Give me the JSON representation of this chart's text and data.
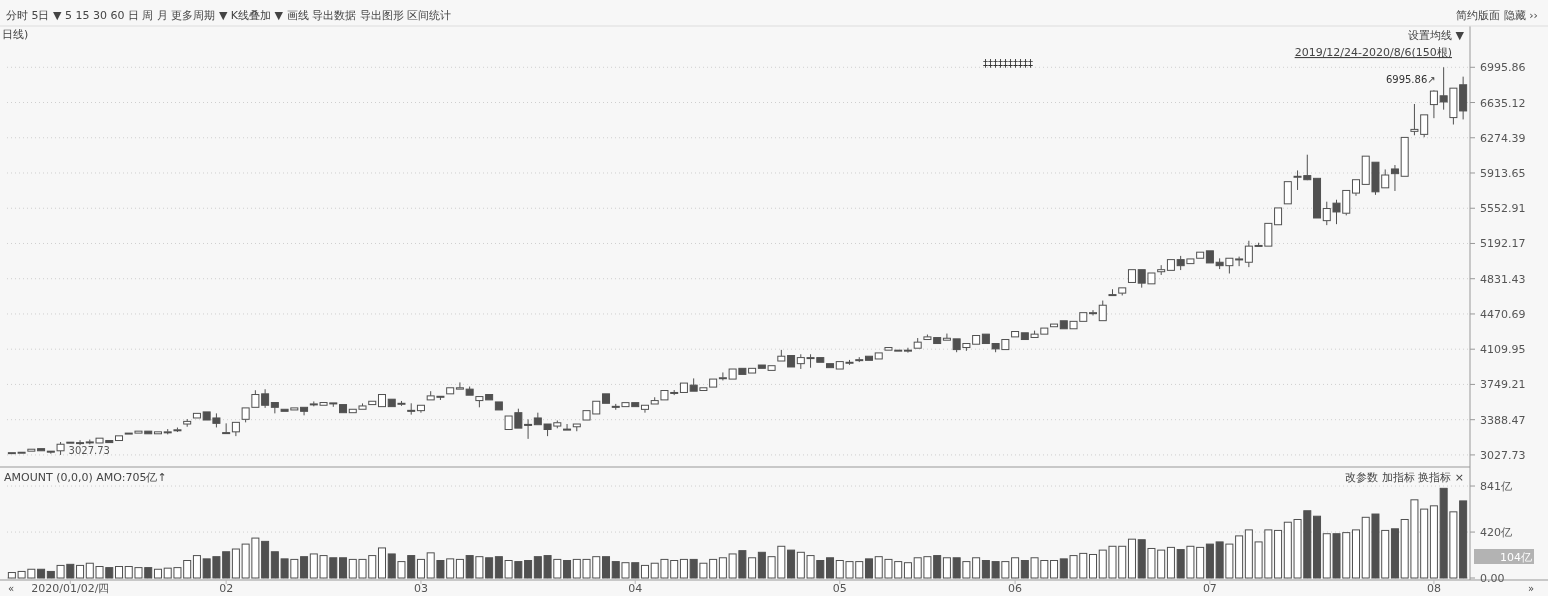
{
  "chart_data": [
    {
      "type": "candlestick",
      "title": "日线)",
      "grid": "y",
      "tick_labels": "y",
      "annotations": [
        "分时  5日 ▼  5  15  30  60  日  周  月  更多周期 ▼  K线叠加 ▼  画线  导出数据  导出图形  区间统计",
        "简约版面    隐藏 ››",
        "设置均线 ▼",
        "2019/12/24-2020/8/6(150根)",
        "6995.86↗",
        "3027.73",
        "‡‡‡‡‡‡‡‡‡‡"
      ],
      "ylim": [
        2904,
        7398
      ],
      "yticks": [
        3027.73,
        3388.47,
        3749.21,
        4109.95,
        4470.69,
        4831.43,
        5192.17,
        5552.91,
        5913.65,
        6274.39,
        6635.12,
        6995.86
      ],
      "categories": [
        null,
        null,
        null,
        null,
        null,
        null,
        null,
        null,
        null,
        null,
        null,
        null,
        null,
        null,
        null,
        null,
        null,
        null,
        null,
        null,
        null,
        null,
        null,
        null,
        null,
        null,
        null,
        null,
        null,
        null,
        null,
        null,
        null,
        null,
        null,
        null,
        null,
        null,
        null,
        null,
        null,
        null,
        null,
        null,
        null,
        null,
        null,
        null,
        null,
        null,
        null,
        null,
        null,
        null,
        null,
        null,
        null,
        null,
        null,
        null,
        null,
        null,
        null,
        null,
        null,
        null,
        null,
        null,
        null,
        null,
        null,
        null,
        null,
        null,
        null,
        null,
        null,
        null,
        null,
        null,
        null,
        null,
        null,
        null,
        null,
        null,
        null,
        null,
        null,
        null,
        null,
        null,
        null,
        null,
        null,
        null,
        null,
        null,
        null,
        null,
        null,
        null,
        null,
        null,
        null,
        null,
        null,
        null,
        null,
        null,
        null,
        null,
        null,
        null,
        null,
        null,
        null,
        null,
        null,
        null,
        null,
        null,
        null,
        null,
        null,
        null,
        null,
        null,
        null,
        null,
        null,
        null,
        null,
        null,
        null,
        null,
        null,
        null,
        null,
        null,
        null,
        null,
        null,
        null,
        null,
        null,
        null,
        null,
        null,
        null
      ],
      "ohlc": [
        [
          3048,
          3051,
          3048,
          3051
        ],
        [
          3052,
          3055,
          3052,
          3055
        ],
        [
          3066,
          3086,
          3066,
          3086
        ],
        [
          3092,
          3092,
          3070,
          3070
        ],
        [
          3066,
          3066,
          3040,
          3065
        ],
        [
          3070,
          3160,
          3027.73,
          3137
        ],
        [
          3158,
          3158,
          3154,
          3154
        ],
        [
          3152,
          3178,
          3128,
          3154
        ],
        [
          3160,
          3185,
          3136,
          3161
        ],
        [
          3150,
          3199,
          3150,
          3199
        ],
        [
          3175,
          3175,
          3154,
          3154
        ],
        [
          3175,
          3223,
          3175,
          3223
        ],
        [
          3250,
          3251,
          3250,
          3251
        ],
        [
          3251,
          3271,
          3251,
          3271
        ],
        [
          3271,
          3271,
          3244,
          3244
        ],
        [
          3244,
          3264,
          3244,
          3264
        ],
        [
          3262,
          3292,
          3238,
          3264
        ],
        [
          3283,
          3308,
          3262,
          3285
        ],
        [
          3344,
          3395,
          3316,
          3371
        ],
        [
          3406,
          3453,
          3406,
          3453
        ],
        [
          3468,
          3468,
          3385,
          3385
        ],
        [
          3406,
          3453,
          3309,
          3351
        ],
        [
          3256,
          3351,
          3251,
          3251
        ],
        [
          3264,
          3361,
          3220,
          3361
        ],
        [
          3392,
          3509,
          3361,
          3509
        ],
        [
          3515,
          3690,
          3515,
          3646
        ],
        [
          3653,
          3700,
          3509,
          3536
        ],
        [
          3564,
          3564,
          3453,
          3515
        ],
        [
          3495,
          3495,
          3474,
          3474
        ],
        [
          3488,
          3509,
          3488,
          3509
        ],
        [
          3515,
          3515,
          3433,
          3474
        ],
        [
          3548,
          3575,
          3525,
          3550
        ],
        [
          3536,
          3564,
          3536,
          3564
        ],
        [
          3560,
          3560,
          3520,
          3557
        ],
        [
          3543,
          3543,
          3460,
          3460
        ],
        [
          3460,
          3495,
          3460,
          3495
        ],
        [
          3495,
          3555,
          3495,
          3529
        ],
        [
          3543,
          3577,
          3543,
          3577
        ],
        [
          3522,
          3646,
          3522,
          3646
        ],
        [
          3598,
          3598,
          3522,
          3522
        ],
        [
          3553,
          3580,
          3530,
          3556
        ],
        [
          3484,
          3556,
          3440,
          3481
        ],
        [
          3481,
          3536,
          3460,
          3536
        ],
        [
          3591,
          3680,
          3591,
          3632
        ],
        [
          3628,
          3628,
          3590,
          3625
        ],
        [
          3653,
          3715,
          3653,
          3715
        ],
        [
          3701,
          3770,
          3701,
          3715
        ],
        [
          3701,
          3728,
          3639,
          3639
        ],
        [
          3584,
          3625,
          3515,
          3625
        ],
        [
          3646,
          3646,
          3591,
          3591
        ],
        [
          3570,
          3570,
          3488,
          3488
        ],
        [
          3288,
          3426,
          3288,
          3426
        ],
        [
          3460,
          3501,
          3302,
          3302
        ],
        [
          3340,
          3392,
          3192,
          3337
        ],
        [
          3406,
          3460,
          3337,
          3337
        ],
        [
          3344,
          3344,
          3220,
          3288
        ],
        [
          3323,
          3380,
          3300,
          3357
        ],
        [
          3292,
          3344,
          3288,
          3288
        ],
        [
          3316,
          3344,
          3270,
          3344
        ],
        [
          3385,
          3481,
          3385,
          3481
        ],
        [
          3447,
          3577,
          3447,
          3577
        ],
        [
          3653,
          3653,
          3556,
          3556
        ],
        [
          3525,
          3550,
          3490,
          3522
        ],
        [
          3522,
          3563,
          3522,
          3563
        ],
        [
          3563,
          3563,
          3522,
          3522
        ],
        [
          3494,
          3536,
          3460,
          3536
        ],
        [
          3549,
          3618,
          3549,
          3584
        ],
        [
          3591,
          3687,
          3591,
          3687
        ],
        [
          3664,
          3692,
          3640,
          3667
        ],
        [
          3667,
          3763,
          3667,
          3763
        ],
        [
          3742,
          3811,
          3680,
          3680
        ],
        [
          3687,
          3715,
          3687,
          3715
        ],
        [
          3722,
          3804,
          3722,
          3804
        ],
        [
          3815,
          3872,
          3790,
          3818
        ],
        [
          3804,
          3907,
          3804,
          3907
        ],
        [
          3914,
          3914,
          3852,
          3852
        ],
        [
          3866,
          3914,
          3866,
          3914
        ],
        [
          3948,
          3948,
          3914,
          3914
        ],
        [
          3893,
          3941,
          3893,
          3941
        ],
        [
          3989,
          4103,
          3989,
          4038
        ],
        [
          4045,
          4045,
          3928,
          3928
        ],
        [
          3962,
          4058,
          3908,
          4024
        ],
        [
          4022,
          4058,
          3920,
          4024
        ],
        [
          4024,
          4024,
          3976,
          3976
        ],
        [
          3962,
          3962,
          3921,
          3921
        ],
        [
          3907,
          3983,
          3907,
          3983
        ],
        [
          3974,
          4000,
          3950,
          3976
        ],
        [
          4001,
          4028,
          3978,
          4003
        ],
        [
          4038,
          4038,
          3996,
          3996
        ],
        [
          4010,
          4072,
          4010,
          4072
        ],
        [
          4100,
          4127,
          4100,
          4127
        ],
        [
          4100,
          4100,
          4100,
          4100
        ],
        [
          4098,
          4125,
          4075,
          4100
        ],
        [
          4120,
          4224,
          4120,
          4182
        ],
        [
          4209,
          4260,
          4209,
          4236
        ],
        [
          4229,
          4229,
          4168,
          4168
        ],
        [
          4202,
          4270,
          4202,
          4222
        ],
        [
          4216,
          4216,
          4079,
          4106
        ],
        [
          4127,
          4168,
          4093,
          4168
        ],
        [
          4161,
          4250,
          4161,
          4250
        ],
        [
          4264,
          4264,
          4168,
          4168
        ],
        [
          4168,
          4168,
          4079,
          4113
        ],
        [
          4106,
          4209,
          4106,
          4209
        ],
        [
          4236,
          4291,
          4236,
          4291
        ],
        [
          4278,
          4278,
          4209,
          4209
        ],
        [
          4230,
          4300,
          4230,
          4264
        ],
        [
          4264,
          4326,
          4264,
          4326
        ],
        [
          4340,
          4367,
          4340,
          4367
        ],
        [
          4401,
          4401,
          4319,
          4319
        ],
        [
          4319,
          4395,
          4319,
          4395
        ],
        [
          4395,
          4484,
          4395,
          4484
        ],
        [
          4480,
          4510,
          4455,
          4484
        ],
        [
          4402,
          4608,
          4402,
          4560
        ],
        [
          4665,
          4724,
          4665,
          4669
        ],
        [
          4684,
          4738,
          4660,
          4738
        ],
        [
          4793,
          4924,
          4793,
          4924
        ],
        [
          4924,
          4924,
          4740,
          4786
        ],
        [
          4779,
          4890,
          4779,
          4890
        ],
        [
          4903,
          4970,
          4870,
          4924
        ],
        [
          4917,
          5027,
          4917,
          5027
        ],
        [
          5027,
          5065,
          4920,
          4965
        ],
        [
          4986,
          5034,
          4986,
          5034
        ],
        [
          5041,
          5103,
          5041,
          5103
        ],
        [
          5117,
          5117,
          4993,
          4993
        ],
        [
          5000,
          5040,
          4930,
          4965
        ],
        [
          4965,
          5041,
          4885,
          5041
        ],
        [
          5030,
          5058,
          4960,
          5034
        ],
        [
          5000,
          5220,
          4950,
          5165
        ],
        [
          5170,
          5200,
          5170,
          5172
        ],
        [
          5165,
          5398,
          5165,
          5398
        ],
        [
          5384,
          5556,
          5384,
          5556
        ],
        [
          5598,
          5825,
          5598,
          5825
        ],
        [
          5878,
          5940,
          5740,
          5880
        ],
        [
          5887,
          6101,
          5840,
          5845
        ],
        [
          5859,
          5859,
          5453,
          5453
        ],
        [
          5426,
          5620,
          5380,
          5550
        ],
        [
          5605,
          5640,
          5390,
          5515
        ],
        [
          5502,
          5735,
          5480,
          5735
        ],
        [
          5708,
          5845,
          5680,
          5845
        ],
        [
          5797,
          6086,
          5797,
          6086
        ],
        [
          6024,
          6024,
          5690,
          5721
        ],
        [
          5762,
          5950,
          5762,
          5893
        ],
        [
          5955,
          5995,
          5730,
          5907
        ],
        [
          5880,
          6278,
          5880,
          6278
        ],
        [
          6340,
          6620,
          6300,
          6360
        ],
        [
          6309,
          6509,
          6280,
          6509
        ],
        [
          6614,
          6760,
          6475,
          6752
        ],
        [
          6704,
          6995.86,
          6562,
          6641
        ],
        [
          6481,
          6782,
          6410,
          6782
        ],
        [
          6817,
          6900,
          6462,
          6549
        ]
      ]
    },
    {
      "type": "bar",
      "grid": "y",
      "annotations": [
        "AMOUNT (0,0,0) AMO:705亿↑",
        "改参数    加指标    换指标   ×",
        "104亿",
        "«",
        "»"
      ],
      "ylim": [
        0,
        1015
      ],
      "yticks": [
        {
          "value": 0,
          "label": "0.00"
        },
        {
          "value": 420,
          "label": "420亿"
        },
        {
          "value": 841,
          "label": "841亿"
        }
      ],
      "categories": [
        null,
        null,
        null,
        null,
        null,
        null,
        "2020/01/02/四",
        null,
        null,
        null,
        null,
        null,
        null,
        null,
        null,
        null,
        null,
        null,
        null,
        null,
        null,
        null,
        "02",
        null,
        null,
        null,
        null,
        null,
        null,
        null,
        null,
        null,
        null,
        null,
        null,
        null,
        null,
        null,
        null,
        null,
        null,
        null,
        "03",
        null,
        null,
        null,
        null,
        null,
        null,
        null,
        null,
        null,
        null,
        null,
        null,
        null,
        null,
        null,
        null,
        null,
        null,
        null,
        null,
        null,
        "04",
        null,
        null,
        null,
        null,
        null,
        null,
        null,
        null,
        null,
        null,
        null,
        null,
        null,
        null,
        null,
        null,
        null,
        null,
        null,
        null,
        "05",
        null,
        null,
        null,
        null,
        null,
        null,
        null,
        null,
        null,
        null,
        null,
        null,
        null,
        null,
        null,
        null,
        null,
        "06",
        null,
        null,
        null,
        null,
        null,
        null,
        null,
        null,
        null,
        null,
        null,
        null,
        null,
        null,
        null,
        null,
        null,
        null,
        null,
        "07",
        null,
        null,
        null,
        null,
        null,
        null,
        null,
        null,
        null,
        null,
        null,
        null,
        null,
        null,
        null,
        null,
        null,
        null,
        null,
        null,
        null,
        null,
        "08",
        null,
        null,
        null
      ],
      "values": [
        50,
        60,
        80,
        80,
        60,
        115,
        125,
        115,
        135,
        105,
        95,
        105,
        105,
        95,
        95,
        80,
        90,
        95,
        160,
        205,
        175,
        195,
        240,
        265,
        310,
        365,
        335,
        240,
        175,
        170,
        195,
        220,
        205,
        185,
        185,
        170,
        170,
        205,
        275,
        220,
        150,
        205,
        170,
        230,
        160,
        175,
        170,
        205,
        195,
        185,
        195,
        160,
        150,
        160,
        195,
        205,
        170,
        160,
        170,
        170,
        195,
        195,
        150,
        140,
        140,
        115,
        135,
        170,
        160,
        170,
        170,
        135,
        170,
        185,
        220,
        250,
        185,
        235,
        195,
        290,
        255,
        235,
        205,
        160,
        185,
        160,
        150,
        150,
        175,
        195,
        170,
        150,
        140,
        185,
        195,
        205,
        185,
        185,
        150,
        185,
        160,
        150,
        150,
        185,
        160,
        185,
        160,
        160,
        175,
        205,
        225,
        215,
        255,
        290,
        290,
        355,
        350,
        270,
        255,
        280,
        260,
        290,
        280,
        310,
        330,
        310,
        385,
        440,
        330,
        440,
        435,
        510,
        535,
        615,
        565,
        405,
        405,
        415,
        440,
        555,
        585,
        435,
        450,
        535,
        715,
        630,
        660,
        820,
        605,
        705
      ]
    }
  ]
}
